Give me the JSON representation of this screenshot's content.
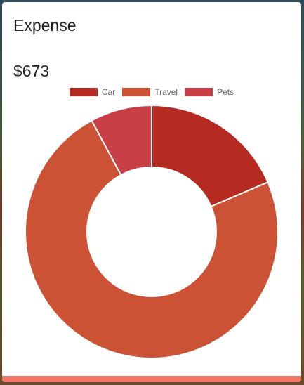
{
  "card": {
    "title": "Expense",
    "total": "$673",
    "accent_color": "#f4776a"
  },
  "chart_data": {
    "type": "pie",
    "style": "doughnut",
    "title": "",
    "categories": [
      "Car",
      "Travel",
      "Pets"
    ],
    "values": [
      125,
      495,
      53
    ],
    "colors": [
      "#b52a21",
      "#cc5236",
      "#c83f45"
    ],
    "legend": "top"
  }
}
